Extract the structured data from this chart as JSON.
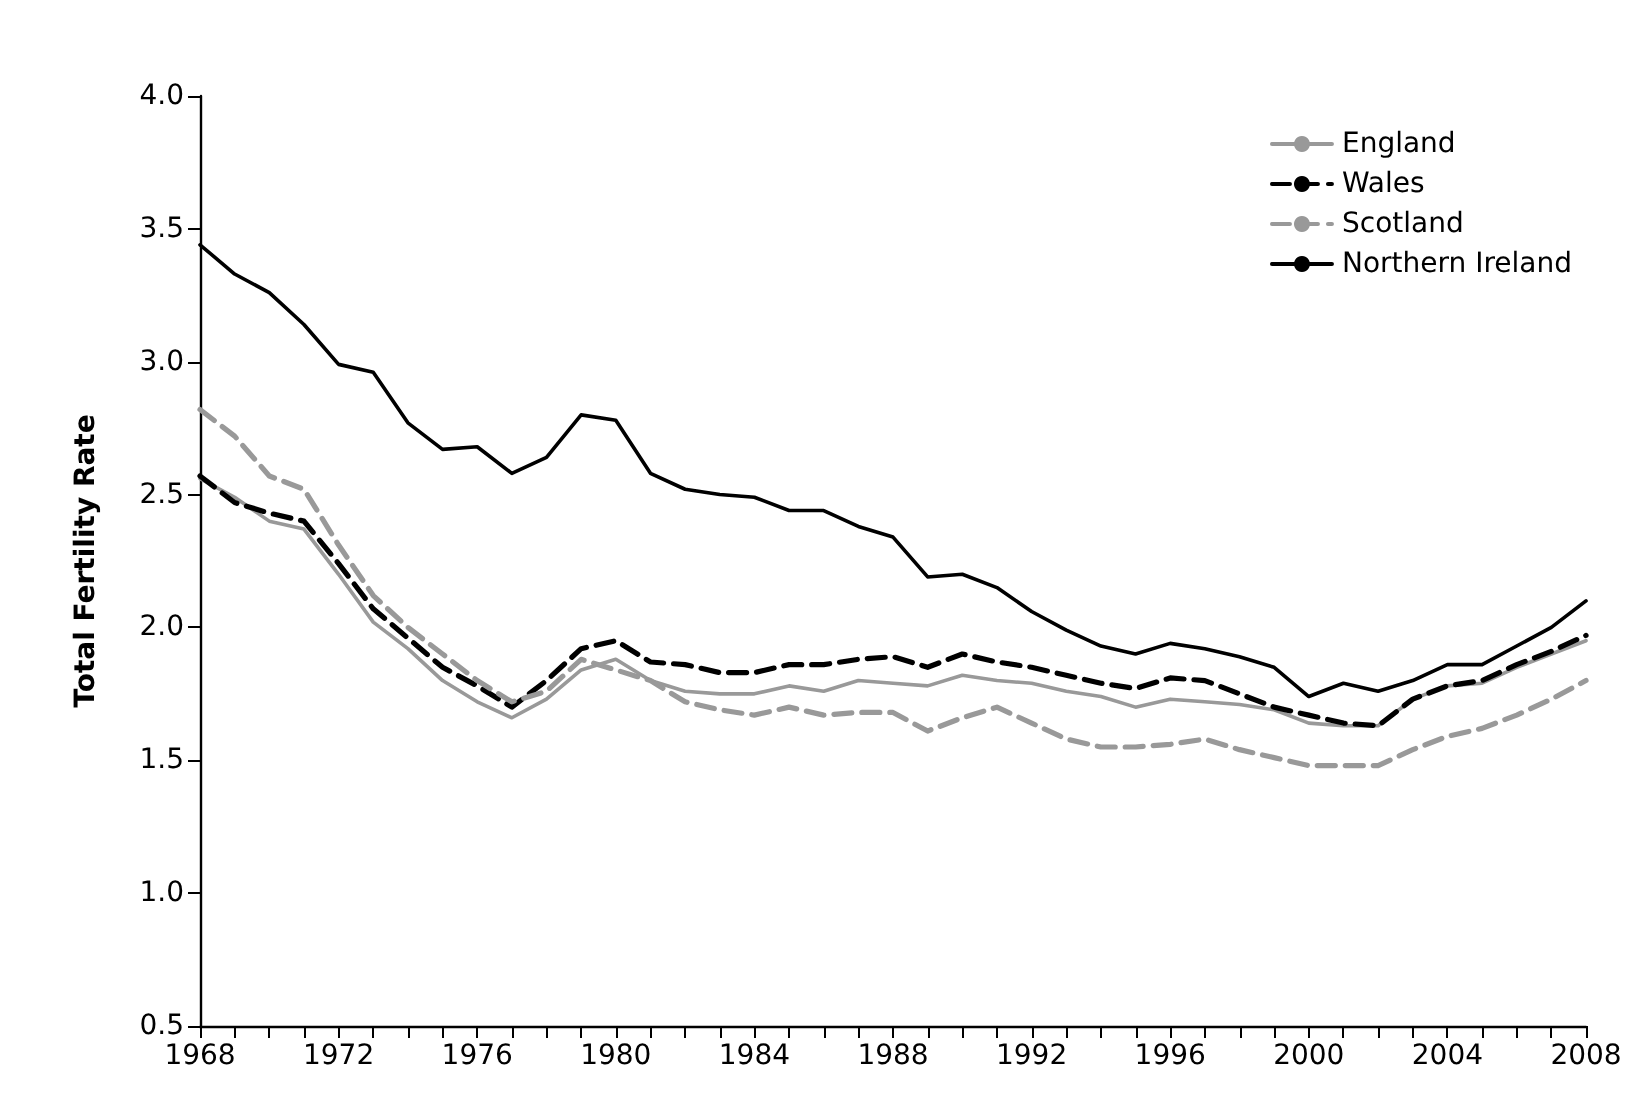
{
  "chart_data": {
    "type": "line",
    "ylabel": "Total Fertility Rate",
    "x": [
      1968,
      1969,
      1970,
      1971,
      1972,
      1973,
      1974,
      1975,
      1976,
      1977,
      1978,
      1979,
      1980,
      1981,
      1982,
      1983,
      1984,
      1985,
      1986,
      1987,
      1988,
      1989,
      1990,
      1991,
      1992,
      1993,
      1994,
      1995,
      1996,
      1997,
      1998,
      1999,
      2000,
      2001,
      2002,
      2003,
      2004,
      2005,
      2006,
      2007,
      2008
    ],
    "series": [
      {
        "name": "England",
        "color": "#999999",
        "line_style": "solid",
        "values": [
          2.56,
          2.49,
          2.4,
          2.37,
          2.2,
          2.02,
          1.92,
          1.8,
          1.72,
          1.66,
          1.73,
          1.84,
          1.88,
          1.8,
          1.76,
          1.75,
          1.75,
          1.78,
          1.76,
          1.8,
          1.79,
          1.78,
          1.82,
          1.8,
          1.79,
          1.76,
          1.74,
          1.7,
          1.73,
          1.72,
          1.71,
          1.69,
          1.64,
          1.63,
          1.63,
          1.73,
          1.78,
          1.79,
          1.85,
          1.9,
          1.95
        ]
      },
      {
        "name": "Wales",
        "color": "#000000",
        "line_style": "dashed",
        "values": [
          2.57,
          2.47,
          2.43,
          2.4,
          2.24,
          2.07,
          1.96,
          1.85,
          1.78,
          1.7,
          1.8,
          1.92,
          1.95,
          1.87,
          1.86,
          1.83,
          1.83,
          1.86,
          1.86,
          1.88,
          1.89,
          1.85,
          1.9,
          1.87,
          1.85,
          1.82,
          1.79,
          1.77,
          1.81,
          1.8,
          1.75,
          1.7,
          1.67,
          1.64,
          1.63,
          1.73,
          1.78,
          1.8,
          1.86,
          1.91,
          1.97
        ]
      },
      {
        "name": "Scotland",
        "color": "#999999",
        "line_style": "dashed",
        "values": [
          2.82,
          2.72,
          2.57,
          2.52,
          2.31,
          2.12,
          2.0,
          1.9,
          1.8,
          1.72,
          1.76,
          1.88,
          1.84,
          1.8,
          1.72,
          1.69,
          1.67,
          1.7,
          1.67,
          1.68,
          1.68,
          1.61,
          1.66,
          1.7,
          1.64,
          1.58,
          1.55,
          1.55,
          1.56,
          1.58,
          1.54,
          1.51,
          1.48,
          1.48,
          1.48,
          1.54,
          1.59,
          1.62,
          1.67,
          1.73,
          1.8
        ]
      },
      {
        "name": "Northern Ireland",
        "color": "#000000",
        "line_style": "solid",
        "values": [
          3.44,
          3.33,
          3.26,
          3.14,
          2.99,
          2.96,
          2.77,
          2.67,
          2.68,
          2.58,
          2.64,
          2.8,
          2.78,
          2.58,
          2.52,
          2.5,
          2.49,
          2.44,
          2.44,
          2.38,
          2.34,
          2.19,
          2.2,
          2.15,
          2.06,
          1.99,
          1.93,
          1.9,
          1.94,
          1.92,
          1.89,
          1.85,
          1.74,
          1.79,
          1.76,
          1.8,
          1.86,
          1.86,
          1.93,
          2.0,
          2.1
        ]
      }
    ],
    "xlim": [
      1968,
      2008
    ],
    "xticks": [
      1968,
      {
        "value": 1969,
        "label": null
      },
      {
        "value": 1970,
        "label": null
      },
      {
        "value": 1971,
        "label": null
      },
      1972,
      {
        "value": 1973,
        "label": null
      },
      {
        "value": 1974,
        "label": null
      },
      {
        "value": 1975,
        "label": null
      },
      1976,
      {
        "value": 1977,
        "label": null
      },
      {
        "value": 1978,
        "label": null
      },
      {
        "value": 1979,
        "label": null
      },
      1980,
      {
        "value": 1981,
        "label": null
      },
      {
        "value": 1982,
        "label": null
      },
      {
        "value": 1983,
        "label": null
      },
      1984,
      {
        "value": 1985,
        "label": null
      },
      {
        "value": 1986,
        "label": null
      },
      {
        "value": 1987,
        "label": null
      },
      1988,
      {
        "value": 1989,
        "label": null
      },
      {
        "value": 1990,
        "label": null
      },
      {
        "value": 1991,
        "label": null
      },
      1992,
      {
        "value": 1993,
        "label": null
      },
      {
        "value": 1994,
        "label": null
      },
      {
        "value": 1995,
        "label": null
      },
      1996,
      {
        "value": 1997,
        "label": null
      },
      {
        "value": 1998,
        "label": null
      },
      {
        "value": 1999,
        "label": null
      },
      2000,
      {
        "value": 2001,
        "label": null
      },
      {
        "value": 2002,
        "label": null
      },
      {
        "value": 2003,
        "label": null
      },
      2004,
      {
        "value": 2005,
        "label": null
      },
      {
        "value": 2006,
        "label": null
      },
      {
        "value": 2007,
        "label": null
      },
      2008
    ],
    "ylim": [
      0.5,
      4.0
    ],
    "yticks": [
      {
        "value": 0.5,
        "label": "0.5"
      },
      {
        "value": 1.0,
        "label": "1.0"
      },
      {
        "value": 1.5,
        "label": "1.5"
      },
      {
        "value": 2.0,
        "label": "2.0"
      },
      {
        "value": 2.5,
        "label": "2.5"
      },
      {
        "value": 3.0,
        "label": "3.0"
      },
      {
        "value": 3.5,
        "label": "3.5"
      },
      {
        "value": 4.0,
        "label": "4.0"
      }
    ],
    "grid": false,
    "legend": "top right",
    "marker": "none"
  }
}
